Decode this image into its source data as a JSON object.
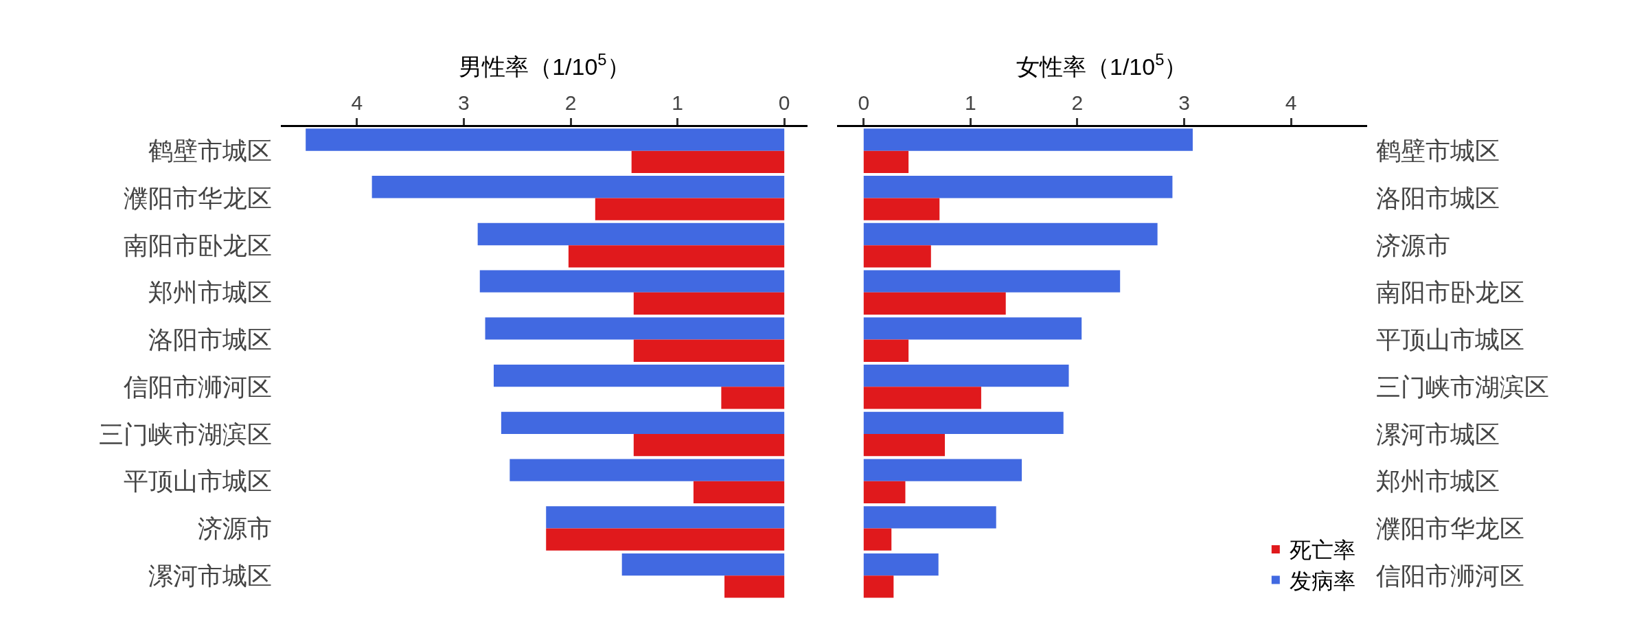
{
  "chart_data": [
    {
      "type": "bar",
      "orientation": "horizontal",
      "xlabel": "男性率（1/10$^{5}$）",
      "categories": [
        "鹤壁市城区",
        "濮阳市华龙区",
        "南阳市卧龙区",
        "郑州市城区",
        "洛阳市城区",
        "信阳市浉河区",
        "三门峡市湖滨区",
        "平顶山市城区",
        "济源市",
        "漯河市城区"
      ],
      "series": [
        {
          "color": "#4169e1",
          "values": [
            4.48,
            3.86,
            2.87,
            2.85,
            2.8,
            2.72,
            2.65,
            2.57,
            2.23,
            1.52
          ]
        },
        {
          "color": "#e0191c",
          "values": [
            1.43,
            1.77,
            2.02,
            1.41,
            1.41,
            0.59,
            1.41,
            0.85,
            2.23,
            0.56
          ]
        }
      ],
      "xlim": [
        4.71,
        -0.22
      ],
      "xticks": [
        4,
        3,
        2,
        1,
        0
      ]
    },
    {
      "type": "bar",
      "orientation": "horizontal",
      "xlabel": "女性率（1/10$^{5}$）",
      "categories": [
        "鹤壁市城区",
        "洛阳市城区",
        "济源市",
        "南阳市卧龙区",
        "平顶山市城区",
        "三门峡市湖滨区",
        "漯河市城区",
        "郑州市城区",
        "濮阳市华龙区",
        "信阳市浉河区"
      ],
      "series": [
        {
          "name": "发病率",
          "color": "#4169e1",
          "values": [
            3.08,
            2.89,
            2.75,
            2.4,
            2.04,
            1.92,
            1.87,
            1.48,
            1.24,
            0.7
          ]
        },
        {
          "name": "死亡率",
          "color": "#e0191c",
          "values": [
            0.42,
            0.71,
            0.63,
            1.33,
            0.42,
            1.1,
            0.76,
            0.39,
            0.26,
            0.28
          ]
        }
      ],
      "xlim": [
        -0.25,
        4.71
      ],
      "xticks": [
        0,
        1,
        2,
        3,
        4
      ],
      "legend": "bottom right"
    }
  ]
}
